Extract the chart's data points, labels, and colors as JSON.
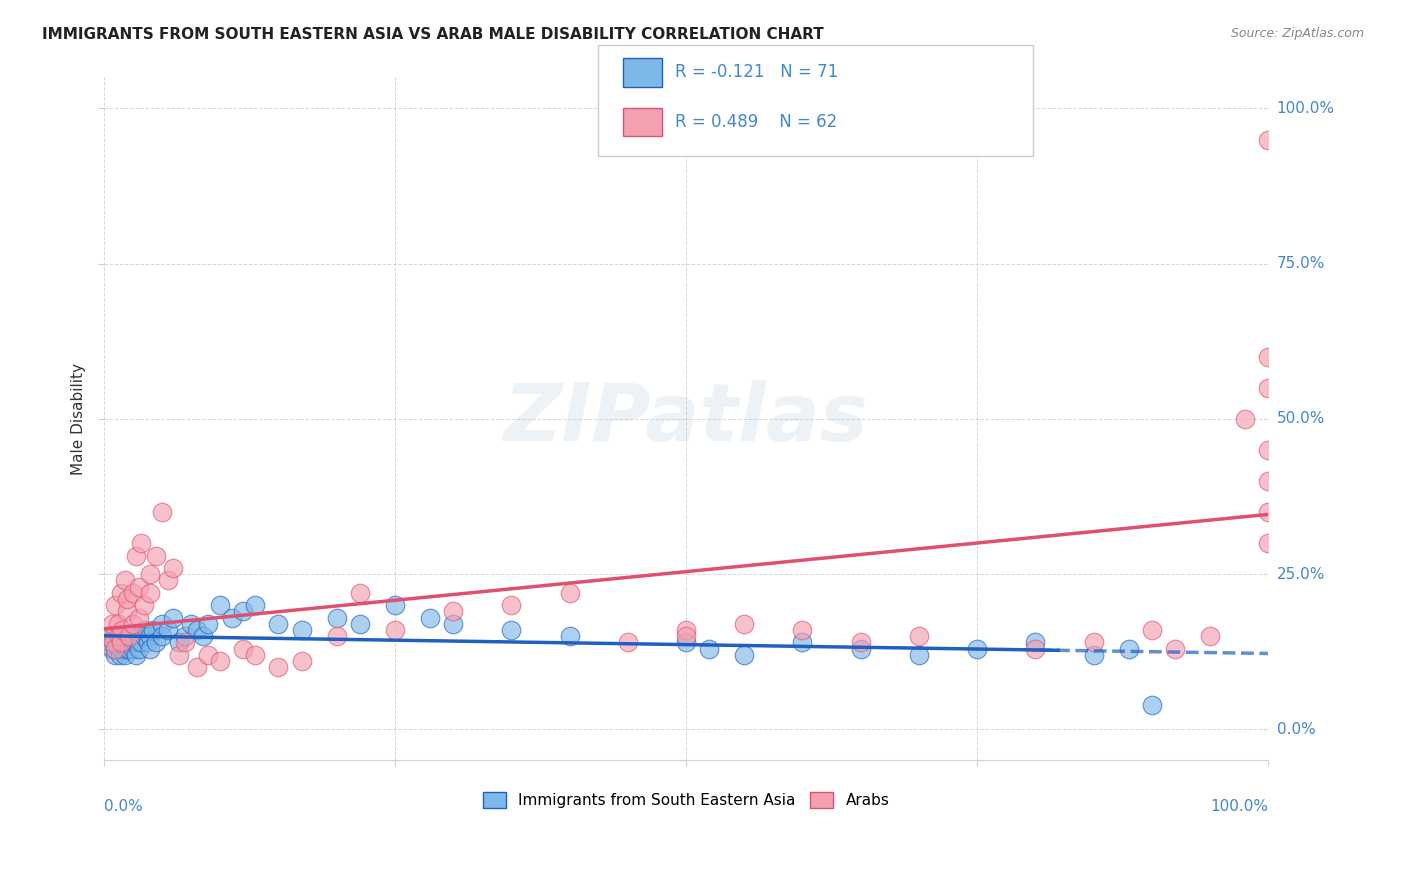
{
  "title": "IMMIGRANTS FROM SOUTH EASTERN ASIA VS ARAB MALE DISABILITY CORRELATION CHART",
  "source": "Source: ZipAtlas.com",
  "ylabel": "Male Disability",
  "ytick_labels": [
    "0.0%",
    "25.0%",
    "50.0%",
    "75.0%",
    "100.0%"
  ],
  "ytick_values": [
    0.0,
    0.25,
    0.5,
    0.75,
    1.0
  ],
  "xlim": [
    0.0,
    1.0
  ],
  "ylim": [
    -0.05,
    1.05
  ],
  "blue_R": -0.121,
  "blue_N": 71,
  "pink_R": 0.489,
  "pink_N": 62,
  "blue_color": "#7EB8E8",
  "pink_color": "#F4A0B0",
  "blue_line_color": "#2060C0",
  "pink_line_color": "#E05070",
  "legend_label_blue": "Immigrants from South Eastern Asia",
  "legend_label_pink": "Arabs",
  "blue_scatter_x": [
    0.005,
    0.007,
    0.008,
    0.01,
    0.01,
    0.01,
    0.01,
    0.012,
    0.012,
    0.013,
    0.014,
    0.015,
    0.015,
    0.015,
    0.016,
    0.018,
    0.018,
    0.02,
    0.02,
    0.02,
    0.022,
    0.022,
    0.025,
    0.025,
    0.027,
    0.028,
    0.03,
    0.03,
    0.03,
    0.032,
    0.035,
    0.035,
    0.038,
    0.04,
    0.04,
    0.042,
    0.045,
    0.05,
    0.05,
    0.055,
    0.06,
    0.065,
    0.07,
    0.075,
    0.08,
    0.085,
    0.09,
    0.1,
    0.11,
    0.12,
    0.13,
    0.15,
    0.17,
    0.2,
    0.22,
    0.25,
    0.28,
    0.3,
    0.35,
    0.4,
    0.5,
    0.52,
    0.55,
    0.6,
    0.65,
    0.7,
    0.75,
    0.8,
    0.85,
    0.88,
    0.9
  ],
  "blue_scatter_y": [
    0.14,
    0.13,
    0.15,
    0.13,
    0.14,
    0.12,
    0.15,
    0.13,
    0.14,
    0.13,
    0.12,
    0.14,
    0.15,
    0.13,
    0.14,
    0.13,
    0.12,
    0.14,
    0.13,
    0.15,
    0.13,
    0.14,
    0.15,
    0.13,
    0.14,
    0.12,
    0.15,
    0.14,
    0.13,
    0.14,
    0.16,
    0.15,
    0.14,
    0.15,
    0.13,
    0.16,
    0.14,
    0.17,
    0.15,
    0.16,
    0.18,
    0.14,
    0.15,
    0.17,
    0.16,
    0.15,
    0.17,
    0.2,
    0.18,
    0.19,
    0.2,
    0.17,
    0.16,
    0.18,
    0.17,
    0.2,
    0.18,
    0.17,
    0.16,
    0.15,
    0.14,
    0.13,
    0.12,
    0.14,
    0.13,
    0.12,
    0.13,
    0.14,
    0.12,
    0.13,
    0.04
  ],
  "pink_scatter_x": [
    0.005,
    0.007,
    0.008,
    0.01,
    0.01,
    0.012,
    0.013,
    0.015,
    0.015,
    0.016,
    0.018,
    0.02,
    0.02,
    0.022,
    0.025,
    0.025,
    0.028,
    0.03,
    0.03,
    0.032,
    0.035,
    0.04,
    0.04,
    0.045,
    0.05,
    0.055,
    0.06,
    0.065,
    0.07,
    0.08,
    0.09,
    0.1,
    0.12,
    0.13,
    0.15,
    0.17,
    0.2,
    0.22,
    0.25,
    0.3,
    0.35,
    0.4,
    0.45,
    0.5,
    0.5,
    0.55,
    0.6,
    0.65,
    0.7,
    0.8,
    0.85,
    0.9,
    0.92,
    0.95,
    0.98,
    1.0,
    1.0,
    1.0,
    1.0,
    1.0,
    1.0,
    1.0
  ],
  "pink_scatter_y": [
    0.15,
    0.17,
    0.14,
    0.13,
    0.2,
    0.17,
    0.15,
    0.22,
    0.14,
    0.16,
    0.24,
    0.19,
    0.21,
    0.15,
    0.17,
    0.22,
    0.28,
    0.18,
    0.23,
    0.3,
    0.2,
    0.25,
    0.22,
    0.28,
    0.35,
    0.24,
    0.26,
    0.12,
    0.14,
    0.1,
    0.12,
    0.11,
    0.13,
    0.12,
    0.1,
    0.11,
    0.15,
    0.22,
    0.16,
    0.19,
    0.2,
    0.22,
    0.14,
    0.16,
    0.15,
    0.17,
    0.16,
    0.14,
    0.15,
    0.13,
    0.14,
    0.16,
    0.13,
    0.15,
    0.5,
    0.95,
    0.55,
    0.6,
    0.4,
    0.45,
    0.35,
    0.3
  ]
}
